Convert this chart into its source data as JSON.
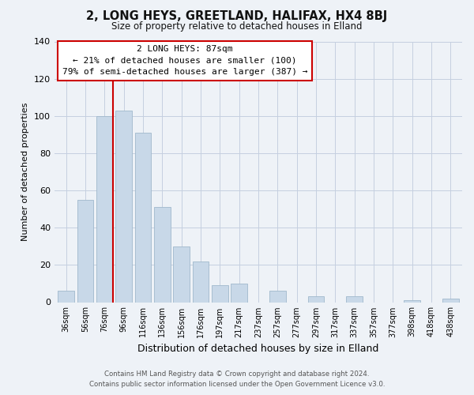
{
  "title": "2, LONG HEYS, GREETLAND, HALIFAX, HX4 8BJ",
  "subtitle": "Size of property relative to detached houses in Elland",
  "xlabel": "Distribution of detached houses by size in Elland",
  "ylabel": "Number of detached properties",
  "categories": [
    "36sqm",
    "56sqm",
    "76sqm",
    "96sqm",
    "116sqm",
    "136sqm",
    "156sqm",
    "176sqm",
    "197sqm",
    "217sqm",
    "237sqm",
    "257sqm",
    "277sqm",
    "297sqm",
    "317sqm",
    "337sqm",
    "357sqm",
    "377sqm",
    "398sqm",
    "418sqm",
    "438sqm"
  ],
  "values": [
    6,
    55,
    100,
    103,
    91,
    51,
    30,
    22,
    9,
    10,
    0,
    6,
    0,
    3,
    0,
    3,
    0,
    0,
    1,
    0,
    2
  ],
  "bar_color": "#c8d8e8",
  "bar_edge_color": "#a0b8cc",
  "vline_color": "#cc0000",
  "ylim": [
    0,
    140
  ],
  "yticks": [
    0,
    20,
    40,
    60,
    80,
    100,
    120,
    140
  ],
  "annotation_title": "2 LONG HEYS: 87sqm",
  "annotation_line1": "← 21% of detached houses are smaller (100)",
  "annotation_line2": "79% of semi-detached houses are larger (387) →",
  "annotation_box_color": "#ffffff",
  "annotation_box_edge": "#cc0000",
  "footer1": "Contains HM Land Registry data © Crown copyright and database right 2024.",
  "footer2": "Contains public sector information licensed under the Open Government Licence v3.0.",
  "background_color": "#eef2f7",
  "plot_background": "#eef2f7",
  "grid_color": "#c5cfe0"
}
